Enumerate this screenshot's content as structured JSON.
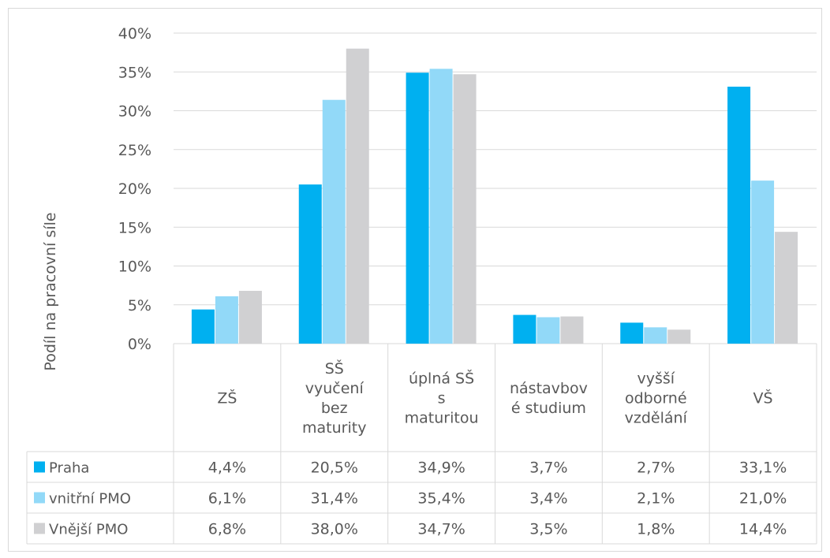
{
  "chart_data": {
    "type": "bar",
    "ylabel": "Podíl na pracovní síle",
    "ylim": [
      0,
      40
    ],
    "yticks": [
      "0%",
      "5%",
      "10%",
      "15%",
      "20%",
      "25%",
      "30%",
      "35%",
      "40%"
    ],
    "categories": [
      [
        "ZŠ"
      ],
      [
        "SŠ",
        "vyučení",
        "bez",
        "maturity"
      ],
      [
        "úplná SŠ",
        "s",
        "maturitou"
      ],
      [
        "nástavbov",
        "é studium"
      ],
      [
        "vyšší",
        "odborné",
        "vzdělání"
      ],
      [
        "VŠ"
      ]
    ],
    "series": [
      {
        "name": "Praha",
        "color": "#00b0f0",
        "values": [
          4.4,
          20.5,
          34.9,
          3.7,
          2.7,
          33.1
        ],
        "labels": [
          "4,4%",
          "20,5%",
          "34,9%",
          "3,7%",
          "2,7%",
          "33,1%"
        ]
      },
      {
        "name": "vnitřní PMO",
        "color": "#92d9f8",
        "values": [
          6.1,
          31.4,
          35.4,
          3.4,
          2.1,
          21.0
        ],
        "labels": [
          "6,1%",
          "31,4%",
          "35,4%",
          "3,4%",
          "2,1%",
          "21,0%"
        ]
      },
      {
        "name": "Vnější PMO",
        "color": "#d0d0d2",
        "values": [
          6.8,
          38.0,
          34.7,
          3.5,
          1.8,
          14.4
        ],
        "labels": [
          "6,8%",
          "38,0%",
          "34,7%",
          "3,5%",
          "1,8%",
          "14,4%"
        ]
      }
    ],
    "grid": true,
    "legend": "data table"
  }
}
